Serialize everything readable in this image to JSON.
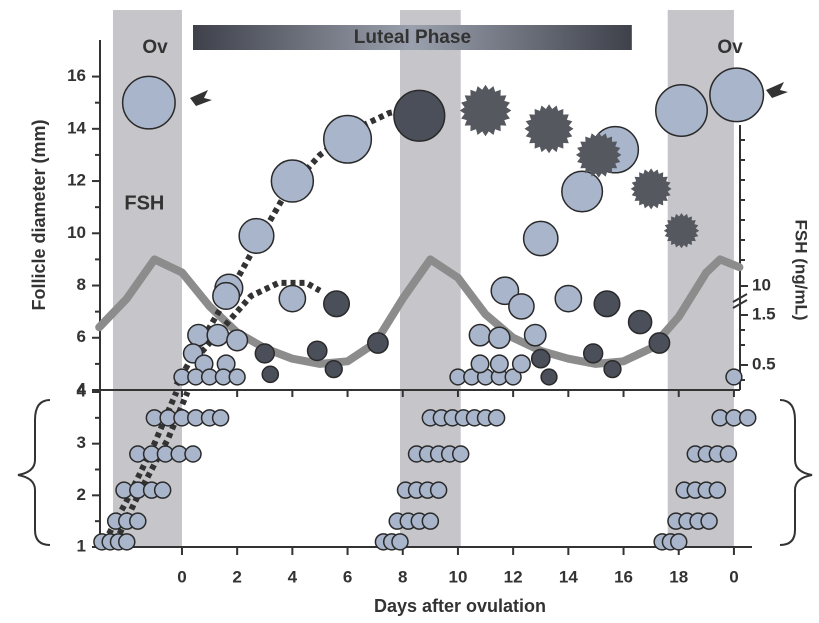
{
  "chart_data": [
    {
      "type": "scatter",
      "y_label": "Follicle diameter (mm)",
      "y2_label": "FSH (ng/mL)",
      "xlim": [
        -2.97,
        20.22
      ],
      "ylim": [
        4,
        17.4
      ],
      "yticks": [
        4,
        6,
        8,
        10,
        12,
        14,
        16
      ],
      "y2ticks": [
        10,
        1.5,
        0.5
      ],
      "shaded_x_ranges": [
        [
          -2.5,
          0
        ],
        [
          7.9,
          10.1
        ],
        [
          17.6,
          20
        ]
      ],
      "phase_bar": {
        "text": "Luteal Phase",
        "x": [
          0.4,
          16.3
        ]
      },
      "ovulation_labels": [
        "Ov",
        "Ov"
      ],
      "series": [
        {
          "name": "FSH",
          "kind": "line",
          "color": "#8c8c8c",
          "x": [
            -3,
            -2,
            -1,
            0,
            1,
            2,
            3,
            4,
            5,
            6,
            7,
            8,
            9,
            10,
            11,
            12,
            13,
            14,
            15,
            16,
            17,
            18,
            19,
            19.5,
            20.2
          ],
          "values": [
            6.4,
            7.5,
            9.0,
            8.5,
            7.2,
            6.2,
            5.6,
            5.2,
            5.0,
            5.1,
            5.8,
            7.5,
            9.0,
            8.3,
            6.9,
            6.0,
            5.5,
            5.2,
            5.0,
            5.1,
            5.6,
            6.8,
            8.5,
            9.0,
            8.7
          ]
        },
        {
          "kind": "dotted",
          "color": "#333333",
          "x": [
            -0.2,
            0.5,
            1.5,
            2.6,
            3.8,
            5,
            6.3,
            7.5,
            8.3
          ],
          "values": [
            4.2,
            5.5,
            7.3,
            9.4,
            11.6,
            13,
            14,
            14.6,
            14.8
          ]
        },
        {
          "kind": "dotted",
          "color": "#333333",
          "x": [
            0.5,
            1.5,
            2.5,
            3.5,
            4.5,
            5
          ],
          "values": [
            5.2,
            6.4,
            7.6,
            8.1,
            8.1,
            7.8
          ]
        },
        {
          "kind": "circle",
          "color": "#a9b5ca",
          "x": [
            -1.2,
            20.1,
            0,
            0.6,
            1.7,
            2.7,
            4,
            6,
            1.6,
            4,
            0.4,
            1.3,
            2,
            0.8,
            1.6,
            0.5,
            1,
            1.5,
            2,
            10,
            10.5,
            11,
            11.5,
            12,
            10.8,
            11.5,
            10.8,
            11.5,
            12.3,
            11.7,
            12.3,
            12.8,
            13,
            14.5,
            15.7,
            18.1,
            14,
            20
          ],
          "values": [
            15.0,
            15.3,
            4.5,
            6.1,
            7.9,
            9.9,
            12,
            13.6,
            7.6,
            7.5,
            5.4,
            6.1,
            5.9,
            5.0,
            5.0,
            4.5,
            4.5,
            4.5,
            4.5,
            4.5,
            4.5,
            4.5,
            4.5,
            4.5,
            6.1,
            6.0,
            5.0,
            5.0,
            5.0,
            7.8,
            7.2,
            6.1,
            9.8,
            11.6,
            13.2,
            14.7,
            7.5,
            4.5
          ]
        },
        {
          "kind": "circle",
          "color": "#4b4f5a",
          "x": [
            8.6,
            5.6,
            7.1,
            4.9,
            5.5,
            3.0,
            3.2,
            15.4,
            16.6,
            17.3,
            14.9,
            15.6,
            13.0,
            13.3
          ],
          "values": [
            14.5,
            7.3,
            5.8,
            5.5,
            4.8,
            5.4,
            4.6,
            7.3,
            6.6,
            5.8,
            5.4,
            4.8,
            5.2,
            4.5
          ]
        },
        {
          "kind": "star",
          "color": "#55585f",
          "x": [
            11.0,
            13.3,
            15.1,
            17.0,
            18.1
          ],
          "values": [
            14.7,
            14.0,
            13.0,
            11.7,
            10.1
          ]
        }
      ]
    },
    {
      "type": "scatter",
      "x_label": "Days after ovulation",
      "xlim": [
        -2.97,
        20.22
      ],
      "ylim": [
        1,
        4
      ],
      "yticks": [
        1,
        2,
        3,
        4
      ],
      "xticks": [
        0,
        2,
        4,
        6,
        8,
        10,
        12,
        14,
        16,
        18,
        {
          "value": 20,
          "label": "0"
        }
      ],
      "series": [
        {
          "kind": "dotted",
          "color": "#333333",
          "x": [
            -2.8,
            -2,
            -1,
            -0.2
          ],
          "values": [
            1.1,
            1.9,
            3.0,
            4
          ]
        },
        {
          "kind": "dotted",
          "color": "#333333",
          "x": [
            -2.4,
            -1.5,
            -0.5,
            0.2
          ],
          "values": [
            1.1,
            2.1,
            3.1,
            4
          ]
        },
        {
          "kind": "circle",
          "color": "#a9b5ca",
          "x": [
            -2.9,
            -2.6,
            -2.3,
            -2.0,
            -2.4,
            -2.0,
            -1.6,
            -2.1,
            -1.6,
            -1.1,
            -0.7,
            -1.6,
            -1.1,
            -0.6,
            -0.1,
            0.4,
            -1.0,
            -0.5,
            0,
            0.5,
            1.0,
            1.4,
            7.3,
            7.6,
            7.9,
            7.8,
            8.2,
            8.6,
            9.0,
            8.1,
            8.5,
            8.9,
            9.3,
            8.5,
            8.9,
            9.3,
            9.7,
            10.1,
            9.0,
            9.4,
            9.8,
            10.2,
            10.6,
            11.0,
            11.4,
            17.4,
            17.7,
            18.0,
            17.9,
            18.3,
            18.7,
            19.1,
            18.2,
            18.6,
            19.0,
            19.4,
            18.6,
            19.0,
            19.4,
            19.8,
            19.5,
            20.0,
            20.5
          ],
          "values": [
            1.1,
            1.1,
            1.1,
            1.1,
            1.5,
            1.5,
            1.5,
            2.1,
            2.1,
            2.1,
            2.1,
            2.8,
            2.8,
            2.8,
            2.8,
            2.8,
            3.5,
            3.5,
            3.5,
            3.5,
            3.5,
            3.5,
            1.1,
            1.1,
            1.1,
            1.5,
            1.5,
            1.5,
            1.5,
            2.1,
            2.1,
            2.1,
            2.1,
            2.8,
            2.8,
            2.8,
            2.8,
            2.8,
            3.5,
            3.5,
            3.5,
            3.5,
            3.5,
            3.5,
            3.5,
            1.1,
            1.1,
            1.1,
            1.5,
            1.5,
            1.5,
            1.5,
            2.1,
            2.1,
            2.1,
            2.1,
            2.8,
            2.8,
            2.8,
            2.8,
            3.5,
            3.5,
            3.5
          ]
        }
      ]
    }
  ]
}
